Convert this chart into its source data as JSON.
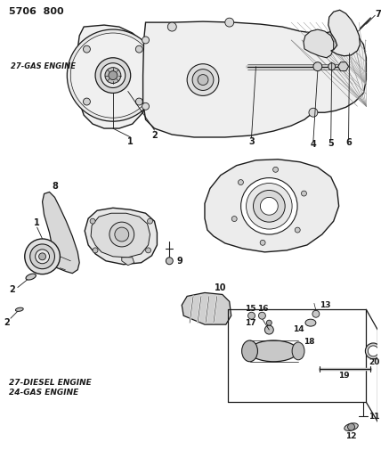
{
  "title": "5706  800",
  "bg_color": "#ffffff",
  "lc": "#1a1a1a",
  "top_label": "27-GAS ENGINE",
  "bottom_label1": "27-DIESEL ENGINE",
  "bottom_label2": "24-GAS ENGINE",
  "figsize": [
    4.28,
    5.33
  ],
  "dpi": 100
}
